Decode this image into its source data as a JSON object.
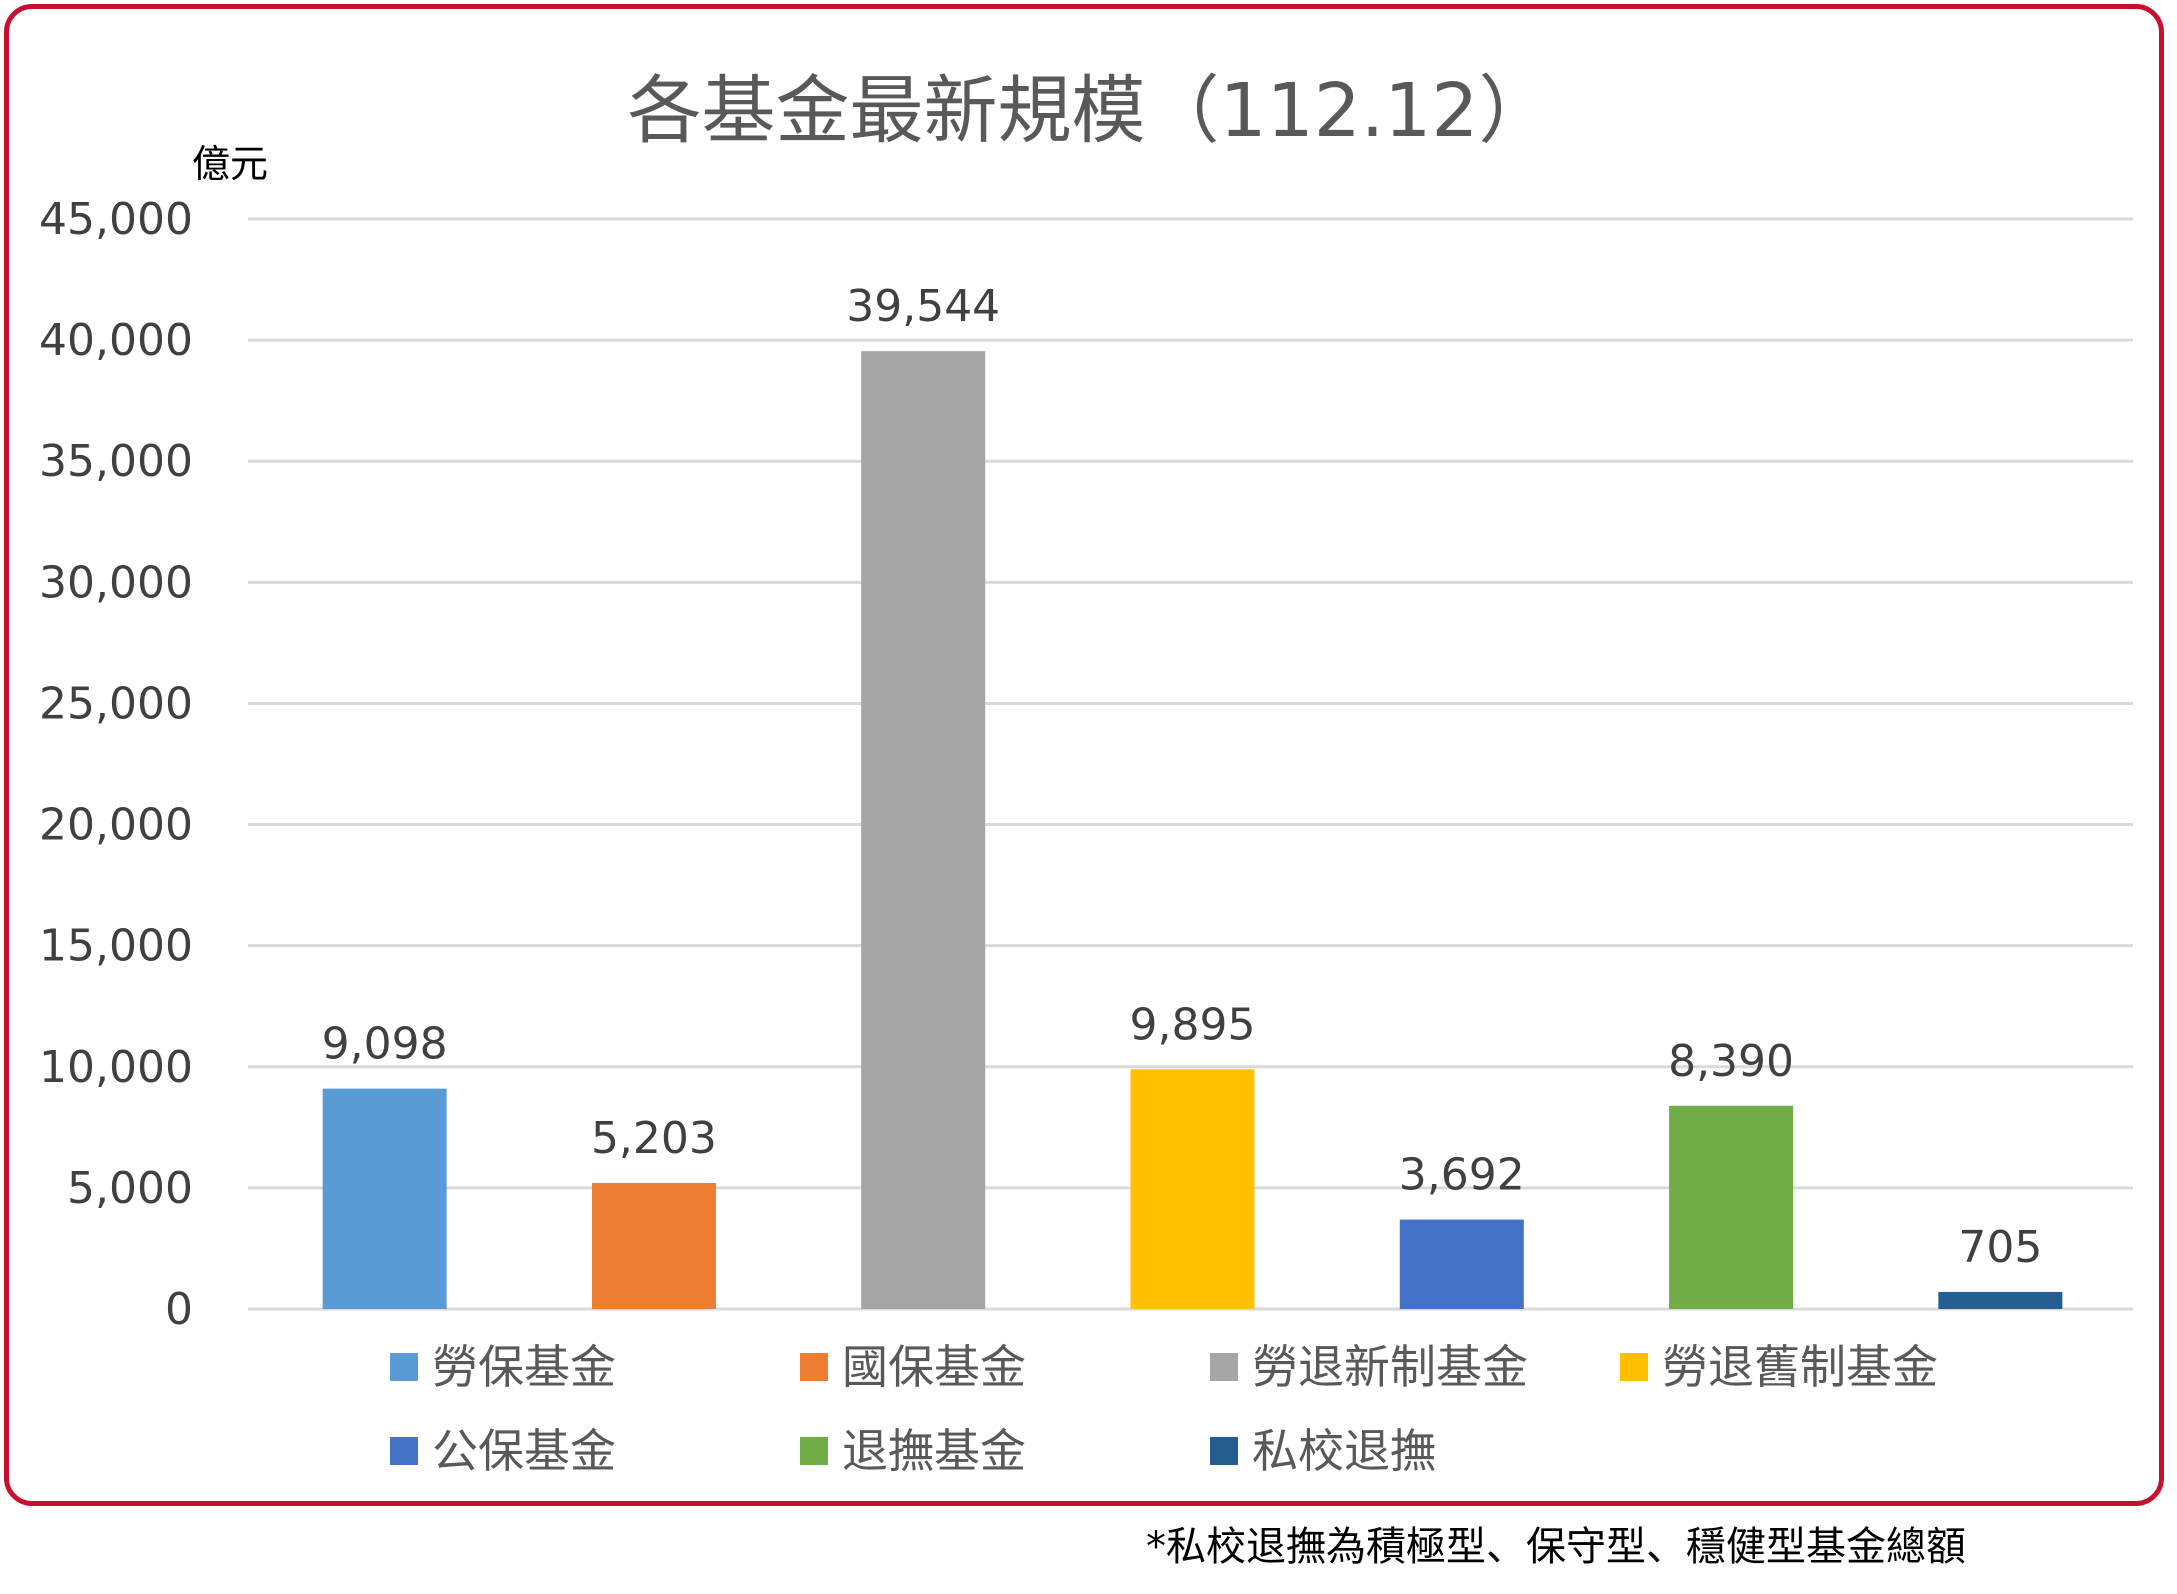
{
  "chart_data": {
    "type": "bar",
    "title": "各基金最新規模（112.12）",
    "ylabel": "億元",
    "ylim": [
      0,
      45000
    ],
    "yticks": [
      "0",
      "5,000",
      "10,000",
      "15,000",
      "20,000",
      "25,000",
      "30,000",
      "35,000",
      "40,000",
      "45,000"
    ],
    "grid": true,
    "legend": "bottom",
    "series": [
      {
        "name": "勞保基金",
        "value": 9098,
        "label": "9,098",
        "color": "#5b9bd5"
      },
      {
        "name": "國保基金",
        "value": 5203,
        "label": "5,203",
        "color": "#ed7d31"
      },
      {
        "name": "勞退新制基金",
        "value": 39544,
        "label": "39,544",
        "color": "#a5a5a5"
      },
      {
        "name": "勞退舊制基金",
        "value": 9895,
        "label": "9,895",
        "color": "#ffc000"
      },
      {
        "name": "公保基金",
        "value": 3692,
        "label": "3,692",
        "color": "#4472c4"
      },
      {
        "name": "退撫基金",
        "value": 8390,
        "label": "8,390",
        "color": "#70ad47"
      },
      {
        "name": "私校退撫",
        "value": 705,
        "label": "705",
        "color": "#255e91"
      }
    ]
  },
  "footnote": "*私校退撫為積極型、保守型、穩健型基金總額",
  "colors": {
    "frame": "#c8102e",
    "grid": "#d9d9d9"
  }
}
